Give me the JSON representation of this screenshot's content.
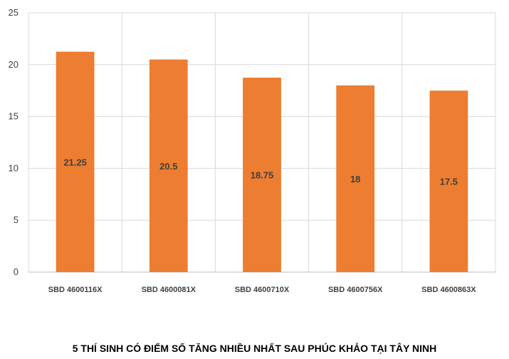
{
  "caption": "5 THÍ SINH CÓ ĐIỂM SỐ TĂNG NHIỀU NHẤT SAU PHÚC KHẢO TẠI TÂY NINH",
  "colors": {
    "bar": "#ED7D31",
    "grid": "#d9d9d9",
    "axis": "#bfbfbf"
  },
  "chart_data": {
    "type": "bar",
    "title": "5 THÍ SINH CÓ ĐIỂM SỐ TĂNG NHIỀU NHẤT SAU PHÚC KHẢO TẠI TÂY NINH",
    "categories": [
      "SBD 4600116X",
      "SBD 4600081X",
      "SBD 4600710X",
      "SBD 4600756X",
      "SBD 4600863X"
    ],
    "values": [
      21.25,
      20.5,
      18.75,
      18,
      17.5
    ],
    "data_labels": [
      "21.25",
      "20.5",
      "18.75",
      "18",
      "17.5"
    ],
    "ylim": [
      0,
      25
    ],
    "yticks": [
      0,
      5,
      10,
      15,
      20,
      25
    ],
    "xlabel": "",
    "ylabel": "",
    "grid": true,
    "legend": "none"
  }
}
